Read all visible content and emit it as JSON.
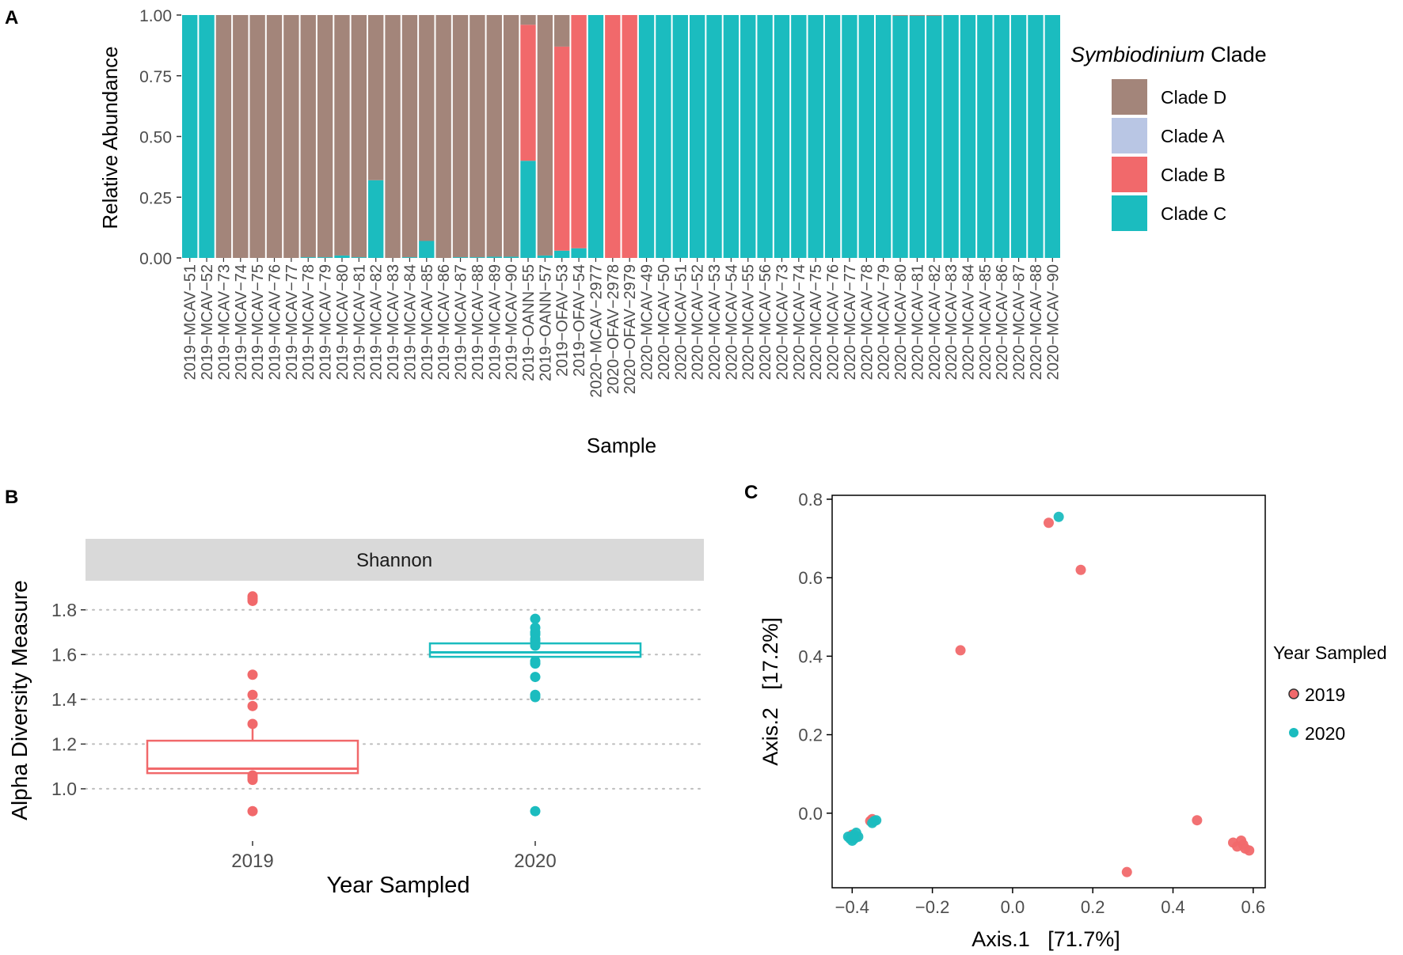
{
  "colors": {
    "clade_d": "#a3857a",
    "clade_a": "#b9c6e4",
    "clade_b": "#f1696b",
    "clade_c": "#1bbcbf",
    "y2019": "#f1696b",
    "y2020": "#1bbcbf",
    "strip": "#d9d9d9",
    "grid": "#bdbdbd"
  },
  "chart_data": [
    {
      "panel": "A",
      "type": "bar",
      "stacked": true,
      "xlabel": "Sample",
      "ylabel": "Relative Abundance",
      "ylim": [
        0,
        1
      ],
      "yticks": [
        "0.00",
        "0.25",
        "0.50",
        "0.75",
        "1.00"
      ],
      "legend_title_italic": "Symbiodinium",
      "legend_title_rest": " Clade",
      "legend": [
        "Clade D",
        "Clade A",
        "Clade B",
        "Clade C"
      ],
      "categories": [
        "2019−MCAV−51",
        "2019−MCAV−52",
        "2019−MCAV−73",
        "2019−MCAV−74",
        "2019−MCAV−75",
        "2019−MCAV−76",
        "2019−MCAV−77",
        "2019−MCAV−78",
        "2019−MCAV−79",
        "2019−MCAV−80",
        "2019−MCAV−81",
        "2019−MCAV−82",
        "2019−MCAV−83",
        "2019−MCAV−84",
        "2019−MCAV−85",
        "2019−MCAV−86",
        "2019−MCAV−87",
        "2019−MCAV−88",
        "2019−MCAV−89",
        "2019−MCAV−90",
        "2019−OANN−55",
        "2019−OANN−57",
        "2019−OFAV−53",
        "2019−OFAV−54",
        "2020−MCAV−2977",
        "2020−OFAV−2978",
        "2020−OFAV−2979",
        "2020−MCAV−49",
        "2020−MCAV−50",
        "2020−MCAV−51",
        "2020−MCAV−52",
        "2020−MCAV−53",
        "2020−MCAV−54",
        "2020−MCAV−55",
        "2020−MCAV−56",
        "2020−MCAV−73",
        "2020−MCAV−74",
        "2020−MCAV−75",
        "2020−MCAV−76",
        "2020−MCAV−77",
        "2020−MCAV−78",
        "2020−MCAV−79",
        "2020−MCAV−80",
        "2020−MCAV−81",
        "2020−MCAV−82",
        "2020−MCAV−83",
        "2020−MCAV−84",
        "2020−MCAV−85",
        "2020−MCAV−86",
        "2020−MCAV−87",
        "2020−MCAV−88",
        "2020−MCAV−90"
      ],
      "series": [
        {
          "name": "Clade C",
          "values": [
            1,
            1,
            0,
            0,
            0,
            0,
            0,
            0.003,
            0.003,
            0.01,
            0.003,
            0.32,
            0,
            0.003,
            0.07,
            0,
            0.003,
            0.003,
            0.005,
            0.005,
            0.4,
            0.01,
            0.03,
            0.04,
            1,
            0,
            0,
            1,
            1,
            1,
            1,
            1,
            1,
            1,
            1,
            1,
            1,
            1,
            1,
            1,
            1,
            1,
            0.997,
            0.997,
            0.997,
            1,
            1,
            1,
            1,
            1,
            1,
            1
          ]
        },
        {
          "name": "Clade B",
          "values": [
            0,
            0,
            0,
            0,
            0,
            0,
            0,
            0,
            0,
            0,
            0,
            0,
            0,
            0,
            0,
            0,
            0,
            0,
            0,
            0,
            0.56,
            0,
            0.84,
            0.96,
            0,
            1,
            1,
            0,
            0,
            0,
            0,
            0,
            0,
            0,
            0,
            0,
            0,
            0,
            0,
            0,
            0,
            0,
            0,
            0,
            0,
            0,
            0,
            0,
            0,
            0,
            0,
            0
          ]
        },
        {
          "name": "Clade A",
          "values": [
            0,
            0,
            0,
            0,
            0,
            0,
            0,
            0,
            0,
            0,
            0,
            0,
            0,
            0,
            0,
            0,
            0,
            0,
            0,
            0,
            0,
            0,
            0,
            0,
            0,
            0,
            0,
            0,
            0,
            0,
            0,
            0,
            0,
            0,
            0,
            0,
            0,
            0,
            0,
            0,
            0,
            0,
            0,
            0,
            0,
            0,
            0,
            0,
            0,
            0,
            0,
            0
          ]
        },
        {
          "name": "Clade D",
          "values": [
            0,
            0,
            1,
            1,
            1,
            1,
            1,
            0.997,
            0.997,
            0.99,
            0.997,
            0.68,
            1,
            0.997,
            0.93,
            1,
            0.997,
            0.997,
            0.995,
            0.995,
            0.04,
            0.99,
            0.13,
            0,
            0,
            0,
            0,
            0,
            0,
            0,
            0,
            0,
            0,
            0,
            0,
            0,
            0,
            0,
            0,
            0,
            0,
            0,
            0.003,
            0.003,
            0.003,
            0,
            0,
            0,
            0,
            0,
            0,
            0
          ]
        }
      ]
    },
    {
      "panel": "B",
      "type": "box",
      "strip_label": "Shannon",
      "xlabel": "Year Sampled",
      "ylabel": "Alpha Diversity Measure",
      "ylim": [
        0.83,
        1.93
      ],
      "yticks": [
        1.0,
        1.2,
        1.4,
        1.6,
        1.8
      ],
      "ytick_labels": [
        "1.0",
        "1.2",
        "1.4",
        "1.6",
        "1.8"
      ],
      "categories": [
        "2019",
        "2020"
      ],
      "boxes": [
        {
          "group": "2019",
          "q1": 1.07,
          "median": 1.09,
          "q3": 1.215,
          "whisker_low": 1.03,
          "whisker_high": 1.29,
          "points": [
            1.86,
            1.85,
            1.84,
            1.51,
            1.42,
            1.37,
            1.29,
            1.06,
            1.05,
            1.04,
            0.9
          ]
        },
        {
          "group": "2020",
          "q1": 1.59,
          "median": 1.61,
          "q3": 1.65,
          "whisker_low": 1.56,
          "whisker_high": 1.7,
          "points": [
            1.76,
            1.72,
            1.7,
            1.69,
            1.67,
            1.66,
            1.64,
            1.57,
            1.56,
            1.5,
            1.42,
            1.41,
            0.9
          ]
        }
      ]
    },
    {
      "panel": "C",
      "type": "scatter",
      "xlabel": "Axis.1   [71.7%]",
      "ylabel": "Axis.2   [17.2%]",
      "xlim": [
        -0.45,
        0.63
      ],
      "ylim": [
        -0.19,
        0.81
      ],
      "xticks": [
        -0.4,
        -0.2,
        0.0,
        0.2,
        0.4,
        0.6
      ],
      "xtick_labels": [
        "−0.4",
        "−0.2",
        "0.0",
        "0.2",
        "0.4",
        "0.6"
      ],
      "yticks": [
        0.0,
        0.2,
        0.4,
        0.6,
        0.8
      ],
      "ytick_labels": [
        "0.0",
        "0.2",
        "0.4",
        "0.6",
        "0.8"
      ],
      "legend_title": "Year Sampled",
      "legend": [
        "2019",
        "2020"
      ],
      "series": [
        {
          "name": "2019",
          "points": [
            [
              0.09,
              0.74
            ],
            [
              0.17,
              0.62
            ],
            [
              -0.13,
              0.415
            ],
            [
              0.46,
              -0.018
            ],
            [
              0.285,
              -0.15
            ],
            [
              0.55,
              -0.075
            ],
            [
              0.57,
              -0.07
            ],
            [
              0.56,
              -0.085
            ],
            [
              0.58,
              -0.09
            ],
            [
              0.59,
              -0.095
            ],
            [
              0.575,
              -0.08
            ],
            [
              -0.35,
              -0.015
            ],
            [
              -0.355,
              -0.02
            ],
            [
              -0.4,
              -0.055
            ],
            [
              -0.39,
              -0.06
            ]
          ]
        },
        {
          "name": "2020",
          "points": [
            [
              0.115,
              0.755
            ],
            [
              -0.4,
              -0.06
            ],
            [
              -0.395,
              -0.055
            ],
            [
              -0.405,
              -0.065
            ],
            [
              -0.39,
              -0.05
            ],
            [
              -0.41,
              -0.06
            ],
            [
              -0.385,
              -0.06
            ],
            [
              -0.4,
              -0.07
            ],
            [
              -0.395,
              -0.065
            ],
            [
              -0.345,
              -0.02
            ],
            [
              -0.35,
              -0.025
            ],
            [
              -0.34,
              -0.018
            ]
          ]
        }
      ]
    }
  ],
  "panel_labels": {
    "a": "A",
    "b": "B",
    "c": "C"
  }
}
